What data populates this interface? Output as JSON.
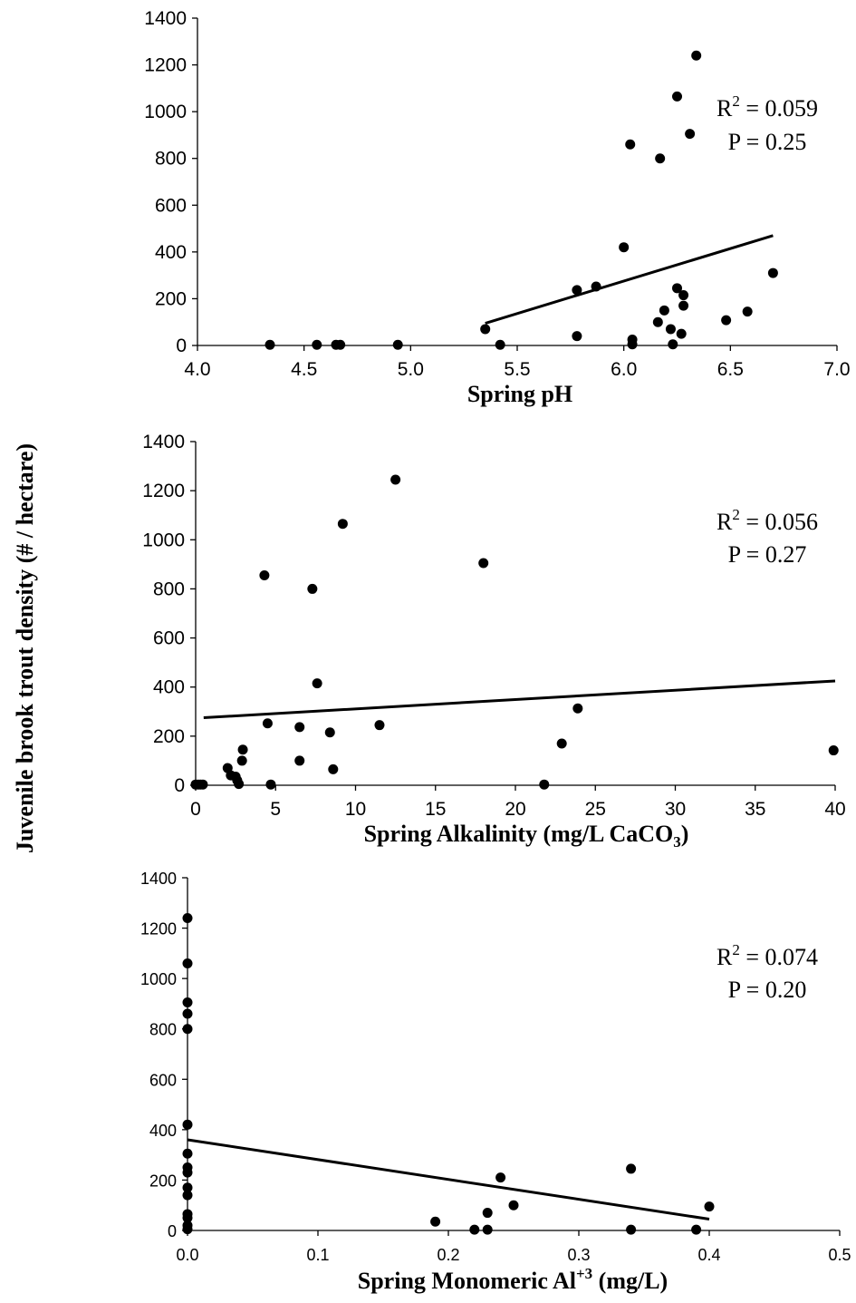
{
  "figure": {
    "ylabel": "Juvenile brook trout density (# / hectare)"
  },
  "chart_data": [
    {
      "type": "scatter",
      "xlabel": "Spring pH",
      "xlim": [
        4.0,
        7.0
      ],
      "ylim": [
        0,
        1400
      ],
      "xticks": [
        "4.0",
        "4.5",
        "5.0",
        "5.5",
        "6.0",
        "6.5",
        "7.0"
      ],
      "yticks": [
        "0",
        "200",
        "400",
        "600",
        "800",
        "1000",
        "1200",
        "1400"
      ],
      "annotation": {
        "r2_prefix": "R",
        "r2_sup": "2",
        "r2_value": " = 0.059",
        "p": "P = 0.25"
      },
      "fit_line": {
        "x": [
          5.35,
          6.7
        ],
        "y": [
          95,
          470
        ]
      },
      "grid": false,
      "points": [
        {
          "x": 4.34,
          "y": 3
        },
        {
          "x": 4.56,
          "y": 3
        },
        {
          "x": 4.65,
          "y": 3
        },
        {
          "x": 4.67,
          "y": 3
        },
        {
          "x": 4.94,
          "y": 3
        },
        {
          "x": 5.35,
          "y": 70
        },
        {
          "x": 5.42,
          "y": 3
        },
        {
          "x": 5.78,
          "y": 40
        },
        {
          "x": 5.78,
          "y": 237
        },
        {
          "x": 5.87,
          "y": 252
        },
        {
          "x": 6.0,
          "y": 420
        },
        {
          "x": 6.03,
          "y": 860
        },
        {
          "x": 6.04,
          "y": 25
        },
        {
          "x": 6.04,
          "y": 5
        },
        {
          "x": 6.16,
          "y": 100
        },
        {
          "x": 6.17,
          "y": 800
        },
        {
          "x": 6.19,
          "y": 150
        },
        {
          "x": 6.22,
          "y": 70
        },
        {
          "x": 6.23,
          "y": 5
        },
        {
          "x": 6.25,
          "y": 1065
        },
        {
          "x": 6.25,
          "y": 245
        },
        {
          "x": 6.27,
          "y": 50
        },
        {
          "x": 6.28,
          "y": 215
        },
        {
          "x": 6.28,
          "y": 170
        },
        {
          "x": 6.31,
          "y": 905
        },
        {
          "x": 6.34,
          "y": 1240
        },
        {
          "x": 6.48,
          "y": 108
        },
        {
          "x": 6.58,
          "y": 145
        },
        {
          "x": 6.7,
          "y": 310
        }
      ]
    },
    {
      "type": "scatter",
      "xlabel_main": "Spring Alkalinity (mg/L CaCO",
      "xlabel_sub": "3",
      "xlabel_end": ")",
      "xlim": [
        0,
        40
      ],
      "ylim": [
        0,
        1400
      ],
      "xticks": [
        "0",
        "5",
        "10",
        "15",
        "20",
        "25",
        "30",
        "35",
        "40"
      ],
      "yticks": [
        "0",
        "200",
        "400",
        "600",
        "800",
        "1000",
        "1200",
        "1400"
      ],
      "annotation": {
        "r2_prefix": "R",
        "r2_sup": "2",
        "r2_value": " = 0.056",
        "p": "P = 0.27"
      },
      "fit_line": {
        "x": [
          0.5,
          40
        ],
        "y": [
          275,
          425
        ]
      },
      "grid": false,
      "points": [
        {
          "x": 0.0,
          "y": 3
        },
        {
          "x": 0.15,
          "y": 3
        },
        {
          "x": 0.3,
          "y": 3
        },
        {
          "x": 0.45,
          "y": 3
        },
        {
          "x": 2.0,
          "y": 70
        },
        {
          "x": 2.2,
          "y": 40
        },
        {
          "x": 2.5,
          "y": 35
        },
        {
          "x": 2.6,
          "y": 20
        },
        {
          "x": 2.7,
          "y": 5
        },
        {
          "x": 2.9,
          "y": 100
        },
        {
          "x": 2.95,
          "y": 145
        },
        {
          "x": 4.3,
          "y": 855
        },
        {
          "x": 4.5,
          "y": 252
        },
        {
          "x": 4.7,
          "y": 3
        },
        {
          "x": 6.5,
          "y": 237
        },
        {
          "x": 6.5,
          "y": 100
        },
        {
          "x": 7.3,
          "y": 800
        },
        {
          "x": 7.6,
          "y": 415
        },
        {
          "x": 8.4,
          "y": 215
        },
        {
          "x": 8.6,
          "y": 65
        },
        {
          "x": 9.2,
          "y": 1065
        },
        {
          "x": 11.5,
          "y": 245
        },
        {
          "x": 12.5,
          "y": 1245
        },
        {
          "x": 18.0,
          "y": 905
        },
        {
          "x": 21.8,
          "y": 3
        },
        {
          "x": 22.9,
          "y": 170
        },
        {
          "x": 23.9,
          "y": 313
        },
        {
          "x": 39.9,
          "y": 142
        }
      ]
    },
    {
      "type": "scatter",
      "xlabel_main": "Spring Monomeric Al",
      "xlabel_sup": "+3",
      "xlabel_end": " (mg/L)",
      "xlim": [
        0.0,
        0.5
      ],
      "ylim": [
        0,
        1400
      ],
      "xticks": [
        "0.0",
        "0.1",
        "0.2",
        "0.3",
        "0.4",
        "0.5"
      ],
      "yticks": [
        "0",
        "200",
        "400",
        "600",
        "800",
        "1000",
        "1200",
        "1400"
      ],
      "annotation": {
        "r2_prefix": "R",
        "r2_sup": "2",
        "r2_value": " = 0.074",
        "p": "P = 0.20"
      },
      "fit_line": {
        "x": [
          0.0,
          0.4
        ],
        "y": [
          360,
          45
        ]
      },
      "grid": false,
      "points": [
        {
          "x": 0.0,
          "y": 1240
        },
        {
          "x": 0.0,
          "y": 1060
        },
        {
          "x": 0.0,
          "y": 905
        },
        {
          "x": 0.0,
          "y": 860
        },
        {
          "x": 0.0,
          "y": 800
        },
        {
          "x": 0.0,
          "y": 420
        },
        {
          "x": 0.0,
          "y": 305
        },
        {
          "x": 0.0,
          "y": 250
        },
        {
          "x": 0.0,
          "y": 230
        },
        {
          "x": 0.0,
          "y": 170
        },
        {
          "x": 0.0,
          "y": 140
        },
        {
          "x": 0.0,
          "y": 65
        },
        {
          "x": 0.0,
          "y": 50
        },
        {
          "x": 0.0,
          "y": 20
        },
        {
          "x": 0.0,
          "y": 5
        },
        {
          "x": 0.19,
          "y": 35
        },
        {
          "x": 0.22,
          "y": 3
        },
        {
          "x": 0.23,
          "y": 70
        },
        {
          "x": 0.23,
          "y": 3
        },
        {
          "x": 0.24,
          "y": 210
        },
        {
          "x": 0.25,
          "y": 100
        },
        {
          "x": 0.34,
          "y": 245
        },
        {
          "x": 0.34,
          "y": 3
        },
        {
          "x": 0.39,
          "y": 3
        },
        {
          "x": 0.4,
          "y": 95
        }
      ]
    }
  ]
}
